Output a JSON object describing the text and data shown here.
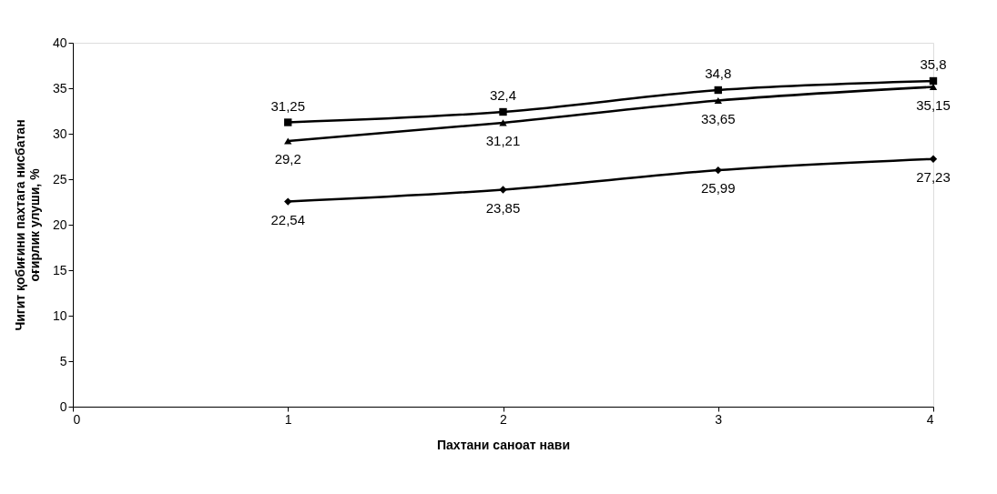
{
  "chart_data": {
    "type": "line",
    "xlabel": "Пахтани саноат нави",
    "ylabel": "Чигит қобиғини пахтага нисбатан\nоғирлик улуши, %",
    "x": [
      1,
      2,
      3,
      4
    ],
    "xlim": [
      0,
      4
    ],
    "xticks": [
      0,
      1,
      2,
      3,
      4
    ],
    "ylim": [
      0,
      40
    ],
    "yticks": [
      0,
      5,
      10,
      15,
      20,
      25,
      30,
      35,
      40
    ],
    "grid": false,
    "line_style": "solid",
    "series": [
      {
        "color": "#000000",
        "marker": "square",
        "values": [
          31.25,
          32.4,
          34.8,
          35.8
        ],
        "value_labels": [
          "31,25",
          "32,4",
          "34,8",
          "35,8"
        ]
      },
      {
        "color": "#000000",
        "marker": "triangle",
        "values": [
          29.2,
          31.21,
          33.65,
          35.15
        ],
        "value_labels": [
          "29,2",
          "31,21",
          "33,65",
          "35,15"
        ]
      },
      {
        "color": "#000000",
        "marker": "diamond",
        "values": [
          22.54,
          23.85,
          25.99,
          27.23
        ],
        "value_labels": [
          "22,54",
          "23,85",
          "25,99",
          "27,23"
        ]
      }
    ]
  }
}
